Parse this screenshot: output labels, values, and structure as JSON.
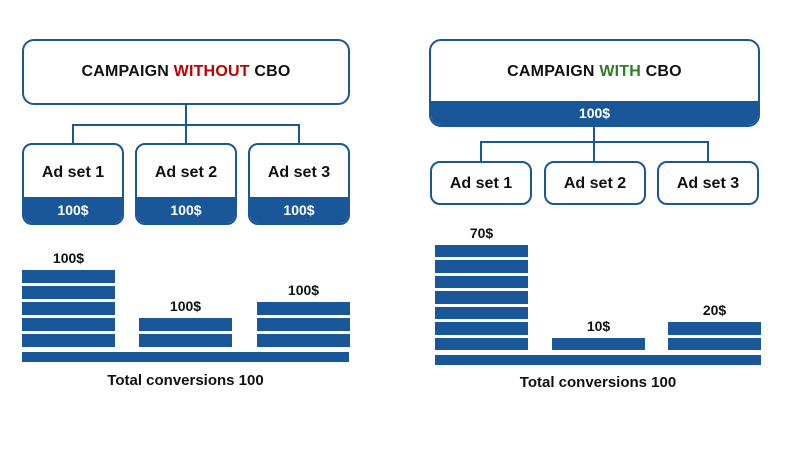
{
  "left": {
    "title_prefix": "CAMPAIGN ",
    "title_highlight": "WITHOUT",
    "title_suffix": " CBO",
    "adsets": [
      {
        "label": "Ad set 1",
        "budget": "100$"
      },
      {
        "label": "Ad set 2",
        "budget": "100$"
      },
      {
        "label": "Ad set 3",
        "budget": "100$"
      }
    ],
    "bars": [
      {
        "label": "100$",
        "segments": 5
      },
      {
        "label": "100$",
        "segments": 2
      },
      {
        "label": "100$",
        "segments": 3
      }
    ],
    "total": "Total conversions 100"
  },
  "right": {
    "title_prefix": "CAMPAIGN ",
    "title_highlight": "WITH",
    "title_suffix": " CBO",
    "budget": "100$",
    "adsets": [
      {
        "label": "Ad set 1"
      },
      {
        "label": "Ad set 2"
      },
      {
        "label": "Ad set 3"
      }
    ],
    "bars": [
      {
        "label": "70$",
        "segments": 7
      },
      {
        "label": "10$",
        "segments": 1
      },
      {
        "label": "20$",
        "segments": 2
      }
    ],
    "total": "Total conversions 100"
  },
  "colors": {
    "primary": "#1a5799",
    "without_highlight": "#c00000",
    "with_highlight": "#2e7d1f"
  }
}
